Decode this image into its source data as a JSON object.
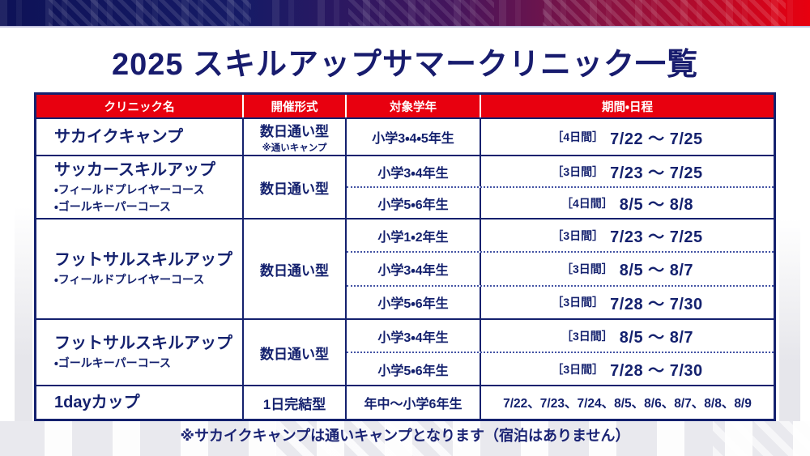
{
  "title": "2025 スキルアップサマークリニック一覧",
  "colors": {
    "navy": "#14216e",
    "header_red": "#e8000f",
    "band_gray": "#e9e9ee"
  },
  "table": {
    "headers": [
      "クリニック名",
      "開催形式",
      "対象学年",
      "期間・日程"
    ],
    "groups": [
      {
        "name": "サカイクキャンプ",
        "format": "数日通い型",
        "format_note": "※通いキャンプ",
        "rows": [
          {
            "grade": "小学3・4・5年生",
            "duration": "［4日間］",
            "dates": "7/22 ～ 7/25"
          }
        ]
      },
      {
        "name": "サッカースキルアップ",
        "courses": [
          "・フィールドプレイヤーコース",
          "・ゴールキーパーコース"
        ],
        "format": "数日通い型",
        "rows": [
          {
            "grade": "小学3・4年生",
            "duration": "［3日間］",
            "dates": "7/23 ～ 7/25"
          },
          {
            "grade": "小学5・6年生",
            "duration": "［4日間］",
            "dates": "8/5 ～ 8/8"
          }
        ]
      },
      {
        "name": "フットサルスキルアップ",
        "courses": [
          "・フィールドプレイヤーコース"
        ],
        "format": "数日通い型",
        "rows": [
          {
            "grade": "小学1・2年生",
            "duration": "［3日間］",
            "dates": "7/23 ～ 7/25"
          },
          {
            "grade": "小学3・4年生",
            "duration": "［3日間］",
            "dates": "8/5 ～ 8/7"
          },
          {
            "grade": "小学5・6年生",
            "duration": "［3日間］",
            "dates": "7/28 ～ 7/30"
          }
        ]
      },
      {
        "name": "フットサルスキルアップ",
        "courses": [
          "・ゴールキーパーコース"
        ],
        "format": "数日通い型",
        "rows": [
          {
            "grade": "小学3・4年生",
            "duration": "［3日間］",
            "dates": "8/5 ～ 8/7"
          },
          {
            "grade": "小学5・6年生",
            "duration": "［3日間］",
            "dates": "7/28 ～ 7/30"
          }
        ]
      },
      {
        "name": "1dayカップ",
        "format": "1日完結型",
        "rows": [
          {
            "grade": "年中～小学6年生",
            "dates": "7/22、7/23、7/24、8/5、8/6、8/7、8/8、8/9"
          }
        ]
      }
    ]
  },
  "footnote": "※サカイクキャンプは通いキャンプとなります（宿泊はありません）"
}
